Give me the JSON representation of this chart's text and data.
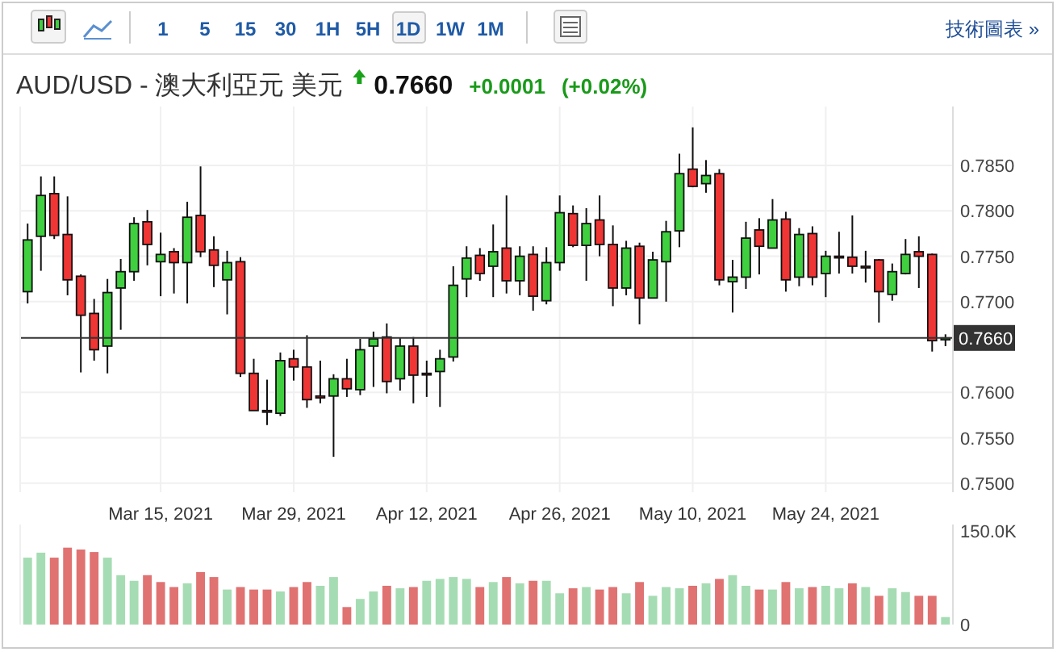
{
  "chart_data": [
    {
      "type": "candlestick",
      "title": "AUD/USD - 澳大利亞元 美元",
      "annotations": [
        "1 5 15 30 1H 5H 1D 1W 1M",
        "技術圖表 »",
        "0.7660",
        "+0.0001",
        "(+0.02%)"
      ],
      "categories": [
        null,
        null,
        null,
        null,
        null,
        null,
        null,
        null,
        null,
        null,
        "Mar 15, 2021",
        null,
        null,
        null,
        null,
        null,
        null,
        null,
        null,
        null,
        "Mar 29, 2021",
        null,
        null,
        null,
        null,
        null,
        null,
        null,
        null,
        null,
        "Apr 12, 2021",
        null,
        null,
        null,
        null,
        null,
        null,
        null,
        null,
        null,
        "Apr 26, 2021",
        null,
        null,
        null,
        null,
        null,
        null,
        null,
        null,
        null,
        "May 10, 2021",
        null,
        null,
        null,
        null,
        null,
        null,
        null,
        null,
        null,
        "May 24, 2021",
        null,
        null,
        null,
        null,
        null,
        null,
        null,
        null,
        null
      ],
      "ohlc": [
        [
          0.7711,
          0.7786,
          0.7698,
          0.7768
        ],
        [
          0.7772,
          0.7838,
          0.7734,
          0.7817
        ],
        [
          0.7819,
          0.7838,
          0.7769,
          0.7773
        ],
        [
          0.7774,
          0.7816,
          0.7707,
          0.7724
        ],
        [
          0.7728,
          0.773,
          0.7622,
          0.7685
        ],
        [
          0.7687,
          0.7703,
          0.7635,
          0.7647
        ],
        [
          0.7651,
          0.7725,
          0.7621,
          0.771
        ],
        [
          0.7715,
          0.7747,
          0.7669,
          0.7733
        ],
        [
          0.7733,
          0.7793,
          0.7723,
          0.7786
        ],
        [
          0.7788,
          0.7801,
          0.774,
          0.7763
        ],
        [
          0.7744,
          0.7776,
          0.7706,
          0.7752
        ],
        [
          0.7755,
          0.7759,
          0.7709,
          0.7743
        ],
        [
          0.7743,
          0.781,
          0.7698,
          0.7793
        ],
        [
          0.7795,
          0.7849,
          0.7749,
          0.7755
        ],
        [
          0.7757,
          0.7772,
          0.7716,
          0.774
        ],
        [
          0.7724,
          0.7756,
          0.7686,
          0.7743
        ],
        [
          0.7744,
          0.7749,
          0.7617,
          0.7621
        ],
        [
          0.7621,
          0.7637,
          0.758,
          0.758
        ],
        [
          0.758,
          0.7614,
          0.7564,
          0.7579
        ],
        [
          0.7577,
          0.7644,
          0.7574,
          0.7635
        ],
        [
          0.7637,
          0.7647,
          0.7613,
          0.7628
        ],
        [
          0.7628,
          0.7663,
          0.7583,
          0.7592
        ],
        [
          0.7596,
          0.7635,
          0.7588,
          0.7594
        ],
        [
          0.7596,
          0.762,
          0.7529,
          0.7615
        ],
        [
          0.7615,
          0.7637,
          0.7595,
          0.7604
        ],
        [
          0.7603,
          0.7659,
          0.7597,
          0.7647
        ],
        [
          0.7651,
          0.7667,
          0.7606,
          0.7659
        ],
        [
          0.7661,
          0.7676,
          0.7599,
          0.7612
        ],
        [
          0.7615,
          0.766,
          0.7602,
          0.7651
        ],
        [
          0.7651,
          0.7661,
          0.7588,
          0.7619
        ],
        [
          0.7621,
          0.7635,
          0.7595,
          0.762
        ],
        [
          0.7623,
          0.7647,
          0.7584,
          0.7637
        ],
        [
          0.7639,
          0.7739,
          0.7634,
          0.7718
        ],
        [
          0.7725,
          0.7761,
          0.7705,
          0.7748
        ],
        [
          0.7751,
          0.7759,
          0.7723,
          0.7731
        ],
        [
          0.7739,
          0.7785,
          0.7705,
          0.7755
        ],
        [
          0.7759,
          0.7817,
          0.7709,
          0.7723
        ],
        [
          0.7723,
          0.7761,
          0.7707,
          0.775
        ],
        [
          0.7752,
          0.7761,
          0.769,
          0.7706
        ],
        [
          0.7701,
          0.776,
          0.7697,
          0.7743
        ],
        [
          0.7743,
          0.7817,
          0.7734,
          0.7798
        ],
        [
          0.7797,
          0.7806,
          0.776,
          0.7762
        ],
        [
          0.7762,
          0.7803,
          0.7723,
          0.7786
        ],
        [
          0.779,
          0.7817,
          0.775,
          0.7763
        ],
        [
          0.7763,
          0.7784,
          0.7695,
          0.7715
        ],
        [
          0.7715,
          0.7767,
          0.7707,
          0.7759
        ],
        [
          0.7761,
          0.7765,
          0.7675,
          0.7704
        ],
        [
          0.7704,
          0.7755,
          0.7704,
          0.7746
        ],
        [
          0.7744,
          0.7789,
          0.77,
          0.7777
        ],
        [
          0.7778,
          0.7863,
          0.776,
          0.7841
        ],
        [
          0.7846,
          0.7892,
          0.7826,
          0.7827
        ],
        [
          0.783,
          0.7856,
          0.782,
          0.7839
        ],
        [
          0.7841,
          0.7846,
          0.7718,
          0.7724
        ],
        [
          0.7722,
          0.7746,
          0.7688,
          0.7727
        ],
        [
          0.7727,
          0.7788,
          0.7714,
          0.777
        ],
        [
          0.7779,
          0.7792,
          0.773,
          0.7761
        ],
        [
          0.7759,
          0.7813,
          0.7759,
          0.779
        ],
        [
          0.7791,
          0.7799,
          0.7711,
          0.7724
        ],
        [
          0.7727,
          0.7781,
          0.7717,
          0.7774
        ],
        [
          0.7775,
          0.7783,
          0.7718,
          0.7727
        ],
        [
          0.7731,
          0.7756,
          0.7705,
          0.775
        ],
        [
          0.775,
          0.7777,
          0.7731,
          0.7749
        ],
        [
          0.7749,
          0.7795,
          0.7731,
          0.7739
        ],
        [
          0.7739,
          0.7756,
          0.7721,
          0.7738
        ],
        [
          0.7746,
          0.7747,
          0.7677,
          0.7711
        ],
        [
          0.7708,
          0.7742,
          0.7701,
          0.7733
        ],
        [
          0.7731,
          0.7769,
          0.773,
          0.7752
        ],
        [
          0.7755,
          0.7772,
          0.7715,
          0.775
        ],
        [
          0.7752,
          0.7753,
          0.7645,
          0.7657
        ],
        [
          0.7658,
          0.7664,
          0.7651,
          0.766
        ]
      ],
      "colors": [
        "#3fcf3f",
        "#3fcf3f",
        "#f03535",
        "#f03535",
        "#f03535",
        "#f03535",
        "#3fcf3f",
        "#3fcf3f",
        "#3fcf3f",
        "#f03535",
        "#3fcf3f",
        "#f03535",
        "#3fcf3f",
        "#f03535",
        "#f03535",
        "#3fcf3f",
        "#f03535",
        "#f03535",
        "#f03535",
        "#3fcf3f",
        "#f03535",
        "#f03535",
        "#f03535",
        "#3fcf3f",
        "#f03535",
        "#3fcf3f",
        "#3fcf3f",
        "#f03535",
        "#3fcf3f",
        "#f03535",
        "#f03535",
        "#3fcf3f",
        "#3fcf3f",
        "#3fcf3f",
        "#f03535",
        "#3fcf3f",
        "#f03535",
        "#3fcf3f",
        "#f03535",
        "#3fcf3f",
        "#3fcf3f",
        "#f03535",
        "#3fcf3f",
        "#f03535",
        "#f03535",
        "#3fcf3f",
        "#f03535",
        "#3fcf3f",
        "#3fcf3f",
        "#3fcf3f",
        "#f03535",
        "#3fcf3f",
        "#f03535",
        "#3fcf3f",
        "#3fcf3f",
        "#f03535",
        "#3fcf3f",
        "#f03535",
        "#3fcf3f",
        "#f03535",
        "#3fcf3f",
        "#f03535",
        "#f03535",
        "#f03535",
        "#f03535",
        "#3fcf3f",
        "#3fcf3f",
        "#f03535",
        "#f03535",
        "#3fcf3f"
      ],
      "ylim": [
        0.749,
        0.7915
      ],
      "yticks": [
        {
          "value": 0.75,
          "label": "0.7500"
        },
        {
          "value": 0.755,
          "label": "0.7550"
        },
        {
          "value": 0.76,
          "label": "0.7600"
        },
        {
          "value": 0.77,
          "label": "0.7700"
        },
        {
          "value": 0.775,
          "label": "0.7750"
        },
        {
          "value": 0.78,
          "label": "0.7800"
        },
        {
          "value": 0.785,
          "label": "0.7850"
        }
      ],
      "ref_lines": [
        {
          "axis": "y",
          "value": 0.766,
          "label": "0.7660",
          "color": "#333333"
        }
      ],
      "grid": true
    },
    {
      "type": "bar",
      "categories": [
        null,
        null,
        null,
        null,
        null,
        null,
        null,
        null,
        null,
        null,
        null,
        null,
        null,
        null,
        null,
        null,
        null,
        null,
        null,
        null,
        null,
        null,
        null,
        null,
        null,
        null,
        null,
        null,
        null,
        null,
        null,
        null,
        null,
        null,
        null,
        null,
        null,
        null,
        null,
        null,
        null,
        null,
        null,
        null,
        null,
        null,
        null,
        null,
        null,
        null,
        null,
        null,
        null,
        null,
        null,
        null,
        null,
        null,
        null,
        null,
        null,
        null,
        null,
        null,
        null,
        null,
        null,
        null,
        null,
        null
      ],
      "values": [
        107000,
        115000,
        107000,
        123000,
        120000,
        116000,
        107000,
        79000,
        70000,
        79000,
        68000,
        60000,
        66000,
        84000,
        76000,
        56000,
        60000,
        56000,
        56000,
        53000,
        60000,
        68000,
        62000,
        76000,
        28000,
        41000,
        53000,
        62000,
        58000,
        60000,
        70000,
        73000,
        76000,
        73000,
        60000,
        68000,
        76000,
        66000,
        70000,
        70000,
        50000,
        58000,
        60000,
        56000,
        60000,
        50000,
        68000,
        46000,
        60000,
        58000,
        62000,
        66000,
        73000,
        79000,
        62000,
        56000,
        56000,
        68000,
        58000,
        60000,
        62000,
        58000,
        66000,
        60000,
        46000,
        58000,
        52000,
        46000,
        46000,
        12000
      ],
      "colors": [
        "#a6dcb3",
        "#a6dcb3",
        "#e07272",
        "#e07272",
        "#e07272",
        "#e07272",
        "#a6dcb3",
        "#a6dcb3",
        "#a6dcb3",
        "#e07272",
        "#e07272",
        "#e07272",
        "#a6dcb3",
        "#e07272",
        "#e07272",
        "#a6dcb3",
        "#e07272",
        "#e07272",
        "#e07272",
        "#a6dcb3",
        "#e07272",
        "#e07272",
        "#a6dcb3",
        "#a6dcb3",
        "#e07272",
        "#a6dcb3",
        "#a6dcb3",
        "#e07272",
        "#a6dcb3",
        "#e07272",
        "#a6dcb3",
        "#a6dcb3",
        "#a6dcb3",
        "#a6dcb3",
        "#e07272",
        "#a6dcb3",
        "#e07272",
        "#a6dcb3",
        "#e07272",
        "#a6dcb3",
        "#a6dcb3",
        "#e07272",
        "#a6dcb3",
        "#e07272",
        "#e07272",
        "#a6dcb3",
        "#e07272",
        "#a6dcb3",
        "#a6dcb3",
        "#a6dcb3",
        "#e07272",
        "#a6dcb3",
        "#e07272",
        "#a6dcb3",
        "#a6dcb3",
        "#e07272",
        "#a6dcb3",
        "#e07272",
        "#a6dcb3",
        "#e07272",
        "#a6dcb3",
        "#a6dcb3",
        "#e07272",
        "#a6dcb3",
        "#e07272",
        "#a6dcb3",
        "#a6dcb3",
        "#e07272",
        "#e07272",
        "#a6dcb3"
      ],
      "ylim": [
        0,
        160000
      ],
      "yticks": [
        {
          "value": 0,
          "label": "0"
        },
        {
          "value": 150000,
          "label": "150.0K"
        }
      ]
    }
  ]
}
